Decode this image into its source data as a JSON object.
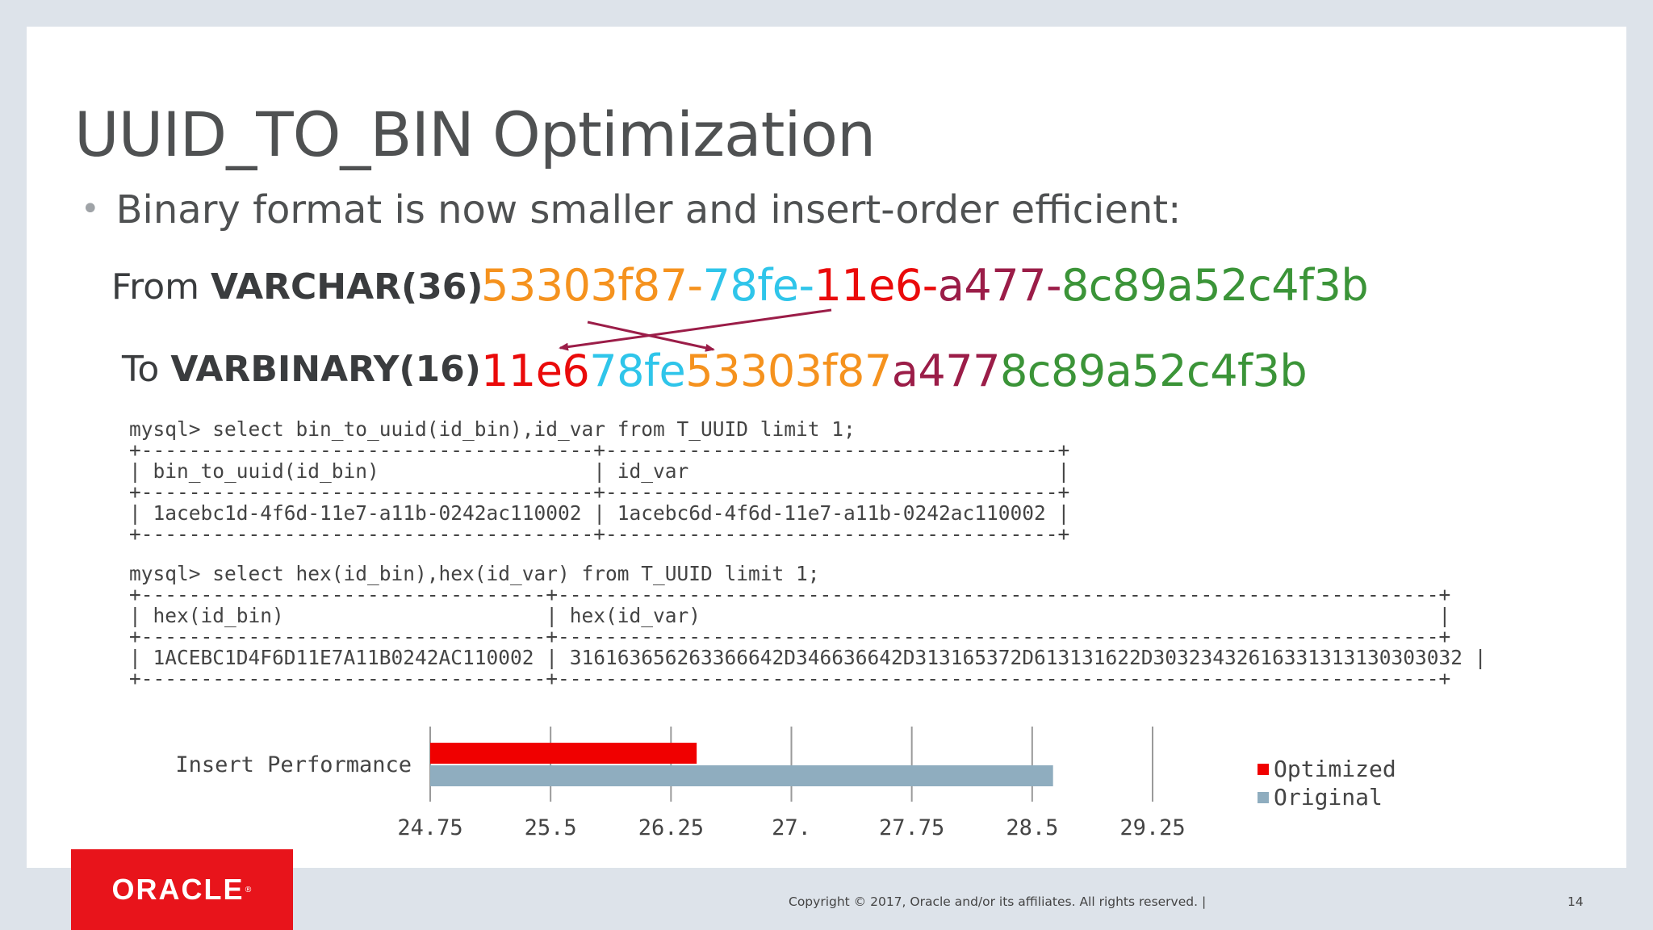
{
  "slide": {
    "title": "UUID_TO_BIN Optimization",
    "bullet": "Binary format is now smaller and insert-order efficient:",
    "from_label_prefix": "From ",
    "from_label_type": "VARCHAR(36)",
    "to_label_prefix": "To ",
    "to_label_type": "VARBINARY(16)",
    "from_uuid": {
      "p1": "53303f87",
      "d1": "-",
      "p2": "78fe",
      "d2": "-",
      "p3": "11e6",
      "d3": "-",
      "p4": "a477",
      "d4": "-",
      "p5": "8c89a52c4f3b"
    },
    "to_uuid": {
      "p3": "11e6",
      "p2": "78fe",
      "p1": "53303f87",
      "p4": "a477",
      "p5": "8c89a52c4f3b"
    },
    "query1": {
      "prompt": "mysql> select bin_to_uuid(id_bin),id_var from T_UUID limit 1;",
      "border": "+--------------------------------------+--------------------------------------+",
      "header": "| bin_to_uuid(id_bin)                  | id_var                               |",
      "row": "| 1acebc1d-4f6d-11e7-a11b-0242ac110002 | 1acebc6d-4f6d-11e7-a11b-0242ac110002 |"
    },
    "query2": {
      "prompt": "mysql> select hex(id_bin),hex(id_var) from T_UUID limit 1;",
      "border": "+----------------------------------+--------------------------------------------------------------------------+",
      "header": "| hex(id_bin)                      | hex(id_var)                                                              |",
      "row": "| 1ACEBC1D4F6D11E7A11B0242AC110002 | 316163656263366642D346636642D313165372D613131622D30323432616331313130303032 |"
    },
    "copyright": "Copyright © 2017, Oracle and/or its affiliates. All rights reserved.  |",
    "page_number": "14",
    "logo_text": "ORACLE"
  },
  "colors": {
    "orange": "#f5921e",
    "blue": "#2fc5ea",
    "red": "#ea0a0a",
    "maroon": "#9b1d48",
    "green": "#3b9438",
    "optimized": "#f00000",
    "original": "#8fadbf",
    "oracle_red": "#e8141b"
  },
  "chart_data": {
    "type": "bar",
    "orientation": "horizontal",
    "categories": [
      "Insert Performance"
    ],
    "series": [
      {
        "name": "Optimized",
        "values": [
          26.41
        ]
      },
      {
        "name": "Original",
        "values": [
          28.63
        ]
      }
    ],
    "xlim": [
      24.75,
      29.25
    ],
    "xticks": [
      "24.75",
      "25.5",
      "26.25",
      "27.",
      "27.75",
      "28.5",
      "29.25"
    ],
    "grid": true,
    "legend": "right"
  }
}
